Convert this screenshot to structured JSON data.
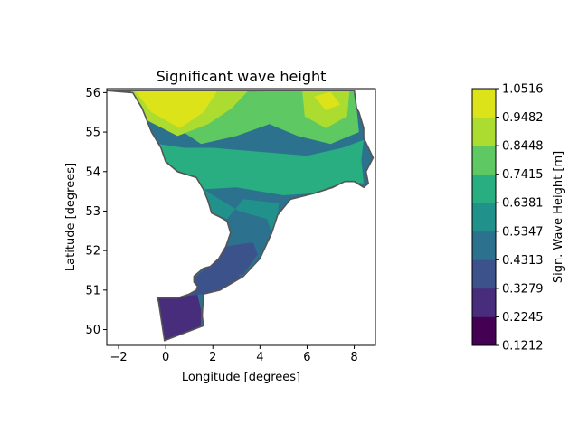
{
  "chart_data": {
    "type": "heatmap",
    "title": "Significant wave height",
    "xlabel": "Longitude [degrees]",
    "ylabel": "Latitude [degrees]",
    "xlim": [
      -2.5,
      8.9
    ],
    "ylim": [
      49.6,
      56.1
    ],
    "xticks": [
      -2,
      0,
      2,
      4,
      6,
      8
    ],
    "yticks": [
      50,
      51,
      52,
      53,
      54,
      55,
      56
    ],
    "grid": false,
    "colorbar": {
      "label": "Sign. Wave Height [m]",
      "levels": [
        "0.1212",
        "0.2245",
        "0.3279",
        "0.4313",
        "0.5347",
        "0.6381",
        "0.7415",
        "0.8448",
        "0.9482",
        "1.0516"
      ],
      "colors": [
        "#440154",
        "#472d7b",
        "#3b528b",
        "#2c728e",
        "#21918c",
        "#28ae80",
        "#5ec962",
        "#addc30",
        "#dce319"
      ]
    },
    "sea_outline": [
      [
        -2.5,
        56.05
      ],
      [
        -1.4,
        56.0
      ],
      [
        -1.0,
        55.6
      ],
      [
        -0.6,
        55.0
      ],
      [
        -0.2,
        54.6
      ],
      [
        0.0,
        54.25
      ],
      [
        0.5,
        54.0
      ],
      [
        1.3,
        53.85
      ],
      [
        1.6,
        53.55
      ],
      [
        1.8,
        53.25
      ],
      [
        1.95,
        52.95
      ],
      [
        2.3,
        52.85
      ],
      [
        2.6,
        52.75
      ],
      [
        2.75,
        52.45
      ],
      [
        2.55,
        52.1
      ],
      [
        2.25,
        51.8
      ],
      [
        1.9,
        51.6
      ],
      [
        1.6,
        51.55
      ],
      [
        1.2,
        51.35
      ],
      [
        1.2,
        51.2
      ],
      [
        1.35,
        51.1
      ],
      [
        1.3,
        51.0
      ],
      [
        1.0,
        50.9
      ],
      [
        0.5,
        50.8
      ],
      [
        0.2,
        50.8
      ],
      [
        -0.35,
        50.8
      ],
      [
        -0.3,
        50.7
      ],
      [
        -0.05,
        49.72
      ],
      [
        0.5,
        49.85
      ],
      [
        1.6,
        50.1
      ],
      [
        1.55,
        50.35
      ],
      [
        1.6,
        50.9
      ],
      [
        2.3,
        51.0
      ],
      [
        3.3,
        51.35
      ],
      [
        4.0,
        51.8
      ],
      [
        4.5,
        52.45
      ],
      [
        4.75,
        52.9
      ],
      [
        5.3,
        53.3
      ],
      [
        6.3,
        53.45
      ],
      [
        7.1,
        53.6
      ],
      [
        7.6,
        53.75
      ],
      [
        8.0,
        53.75
      ],
      [
        8.4,
        53.6
      ],
      [
        8.6,
        53.7
      ],
      [
        8.5,
        54.0
      ],
      [
        8.8,
        54.35
      ],
      [
        8.6,
        54.6
      ],
      [
        8.4,
        54.85
      ],
      [
        8.4,
        55.1
      ],
      [
        8.2,
        55.5
      ],
      [
        8.1,
        55.6
      ],
      [
        8.0,
        56.05
      ]
    ],
    "zones": [
      {
        "level": 1,
        "points": [
          [
            -0.35,
            50.8
          ],
          [
            0.5,
            50.8
          ],
          [
            1.3,
            51.0
          ],
          [
            1.5,
            50.5
          ],
          [
            1.5,
            50.1
          ],
          [
            0.5,
            49.85
          ],
          [
            -0.05,
            49.72
          ]
        ]
      },
      {
        "level": 2,
        "points": [
          [
            0.2,
            50.8
          ],
          [
            1.0,
            50.9
          ],
          [
            1.3,
            51.05
          ],
          [
            1.2,
            51.3
          ],
          [
            1.8,
            51.6
          ],
          [
            2.3,
            51.5
          ],
          [
            3.2,
            51.35
          ],
          [
            2.4,
            51.0
          ],
          [
            1.6,
            50.9
          ]
        ]
      },
      {
        "level": 2,
        "points": [
          [
            1.9,
            51.6
          ],
          [
            2.3,
            51.8
          ],
          [
            2.6,
            52.2
          ],
          [
            3.6,
            52.4
          ],
          [
            3.9,
            51.9
          ],
          [
            3.3,
            51.4
          ],
          [
            2.2,
            51.3
          ]
        ]
      },
      {
        "level": 3,
        "points": [
          [
            2.5,
            52.1
          ],
          [
            2.75,
            52.45
          ],
          [
            2.6,
            52.9
          ],
          [
            3.2,
            53.0
          ],
          [
            4.1,
            52.9
          ],
          [
            4.6,
            52.6
          ],
          [
            4.2,
            52.1
          ],
          [
            3.6,
            52.2
          ]
        ]
      },
      {
        "level": 4,
        "points": [
          [
            1.6,
            53.55
          ],
          [
            1.95,
            52.95
          ],
          [
            2.6,
            52.8
          ],
          [
            3.3,
            53.3
          ],
          [
            4.8,
            53.2
          ],
          [
            4.75,
            52.9
          ],
          [
            4.5,
            52.45
          ],
          [
            4.3,
            52.8
          ],
          [
            3.1,
            53.0
          ]
        ]
      },
      {
        "level": 5,
        "points": [
          [
            -0.3,
            54.7
          ],
          [
            0.0,
            54.25
          ],
          [
            0.5,
            54.0
          ],
          [
            1.3,
            53.85
          ],
          [
            1.6,
            53.55
          ],
          [
            3.0,
            53.6
          ],
          [
            5.0,
            53.4
          ],
          [
            6.3,
            53.45
          ],
          [
            7.6,
            53.75
          ],
          [
            8.4,
            53.7
          ],
          [
            8.3,
            54.3
          ],
          [
            8.4,
            54.8
          ],
          [
            7.5,
            54.6
          ],
          [
            6.0,
            54.4
          ],
          [
            4.0,
            54.5
          ],
          [
            2.0,
            54.6
          ],
          [
            0.8,
            54.6
          ]
        ]
      },
      {
        "level": 6,
        "points": [
          [
            -1.1,
            55.6
          ],
          [
            0.5,
            55.1
          ],
          [
            1.5,
            54.7
          ],
          [
            3.0,
            54.9
          ],
          [
            4.4,
            55.2
          ],
          [
            5.6,
            54.9
          ],
          [
            7.0,
            54.7
          ],
          [
            8.2,
            55.0
          ],
          [
            8.1,
            55.6
          ],
          [
            8.0,
            56.05
          ],
          [
            -1.4,
            56.0
          ]
        ]
      },
      {
        "level": 7,
        "points": [
          [
            -1.5,
            56.05
          ],
          [
            -0.8,
            55.3
          ],
          [
            0.5,
            54.9
          ],
          [
            1.8,
            55.2
          ],
          [
            2.8,
            55.6
          ],
          [
            3.5,
            56.05
          ]
        ]
      },
      {
        "level": 7,
        "points": [
          [
            5.8,
            56.05
          ],
          [
            5.9,
            55.4
          ],
          [
            6.8,
            55.1
          ],
          [
            7.7,
            55.4
          ],
          [
            7.8,
            56.05
          ]
        ]
      },
      {
        "level": 8,
        "points": [
          [
            -1.3,
            56.05
          ],
          [
            -0.6,
            55.5
          ],
          [
            0.6,
            55.1
          ],
          [
            1.6,
            55.5
          ],
          [
            2.2,
            56.05
          ]
        ]
      },
      {
        "level": 8,
        "points": [
          [
            6.3,
            55.9
          ],
          [
            6.8,
            55.55
          ],
          [
            7.4,
            55.7
          ],
          [
            7.0,
            56.02
          ]
        ]
      }
    ]
  }
}
